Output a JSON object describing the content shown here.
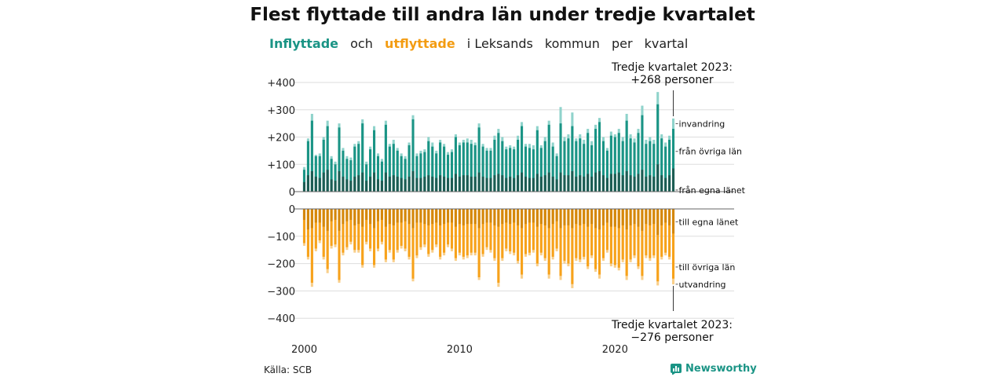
{
  "title": "Flest flyttade till andra län under tredje kvartalet",
  "subtitle": {
    "part1": "Inflyttade",
    "part2": "och",
    "part3": "utflyttade",
    "part4": "i Leksands",
    "part5": "kommun",
    "part6": "per",
    "part7": "kvartal"
  },
  "source": "Källa: SCB",
  "brand": "Newsworthy",
  "colors": {
    "in_egna": "#1c5c53",
    "in_ovriga": "#1a9485",
    "in_total": "#8fd3cb",
    "out_egna": "#d4870a",
    "out_ovriga": "#f7a21b",
    "out_total": "#f9cf8a"
  },
  "annotations": {
    "top_line1": "Tredje kvartalet 2023:",
    "top_line2": "+268 personer",
    "bottom_line1": "Tredje kvartalet 2023:",
    "bottom_line2": "−276 personer"
  },
  "chart_data": {
    "type": "bar",
    "title": "Flest flyttade till andra län under tredje kvartalet",
    "x_tick_labels": [
      "2000",
      "2010",
      "2020"
    ],
    "y_ticks_top": [
      "+400",
      "+300",
      "+200",
      "+100",
      "0"
    ],
    "y_ticks_bottom": [
      "0",
      "−100",
      "−200",
      "−300",
      "−400"
    ],
    "ylim": [
      -400,
      400
    ],
    "x_start": "2000 Q1",
    "x_end": "2023 Q3",
    "series": [
      {
        "name": "invandring",
        "values": [
          90,
          195,
          285,
          135,
          140,
          200,
          260,
          130,
          110,
          250,
          160,
          130,
          125,
          175,
          185,
          265,
          110,
          165,
          240,
          140,
          120,
          260,
          175,
          190,
          160,
          140,
          130,
          180,
          280,
          140,
          150,
          155,
          200,
          180,
          150,
          190,
          175,
          145,
          155,
          210,
          180,
          190,
          195,
          190,
          180,
          250,
          175,
          160,
          160,
          205,
          230,
          200,
          165,
          170,
          165,
          205,
          255,
          175,
          175,
          170,
          240,
          170,
          200,
          260,
          180,
          140,
          310,
          200,
          210,
          290,
          195,
          210,
          190,
          230,
          185,
          245,
          270,
          200,
          160,
          220,
          210,
          230,
          200,
          285,
          210,
          195,
          230,
          315,
          190,
          200,
          190,
          365,
          210,
          180,
          205,
          268
        ]
      },
      {
        "name": "från övriga län",
        "values": [
          80,
          185,
          260,
          130,
          130,
          190,
          240,
          120,
          100,
          235,
          150,
          120,
          115,
          165,
          175,
          250,
          100,
          155,
          225,
          130,
          110,
          245,
          165,
          175,
          150,
          130,
          120,
          170,
          265,
          130,
          140,
          145,
          185,
          165,
          140,
          180,
          165,
          135,
          145,
          200,
          170,
          180,
          180,
          175,
          170,
          235,
          165,
          150,
          150,
          190,
          215,
          185,
          155,
          160,
          155,
          190,
          240,
          165,
          160,
          155,
          225,
          160,
          185,
          245,
          165,
          130,
          250,
          185,
          195,
          240,
          185,
          195,
          175,
          215,
          170,
          230,
          255,
          185,
          150,
          205,
          200,
          215,
          185,
          260,
          195,
          180,
          215,
          280,
          175,
          185,
          175,
          320,
          195,
          165,
          190,
          230
        ]
      },
      {
        "name": "från egna länet",
        "values": [
          35,
          60,
          75,
          55,
          50,
          70,
          80,
          45,
          40,
          75,
          55,
          45,
          40,
          55,
          60,
          70,
          40,
          55,
          70,
          45,
          40,
          70,
          55,
          60,
          55,
          50,
          45,
          55,
          75,
          50,
          50,
          55,
          60,
          55,
          50,
          60,
          55,
          50,
          50,
          65,
          55,
          60,
          60,
          55,
          55,
          70,
          55,
          50,
          50,
          60,
          65,
          60,
          50,
          55,
          50,
          60,
          70,
          55,
          50,
          50,
          65,
          55,
          60,
          70,
          55,
          45,
          70,
          60,
          60,
          75,
          55,
          60,
          55,
          65,
          55,
          70,
          75,
          60,
          50,
          65,
          65,
          70,
          60,
          75,
          60,
          55,
          65,
          80,
          55,
          60,
          55,
          100,
          60,
          50,
          60,
          85
        ]
      },
      {
        "name": "till egna länet",
        "values": [
          -40,
          -75,
          -70,
          -50,
          -50,
          -65,
          -80,
          -45,
          -40,
          -80,
          -55,
          -45,
          -40,
          -60,
          -55,
          -65,
          -40,
          -55,
          -70,
          -45,
          -40,
          -65,
          -55,
          -60,
          -50,
          -50,
          -45,
          -55,
          -70,
          -50,
          -50,
          -55,
          -60,
          -55,
          -50,
          -60,
          -55,
          -50,
          -50,
          -65,
          -55,
          -60,
          -55,
          -55,
          -55,
          -70,
          -55,
          -50,
          -50,
          -60,
          -65,
          -55,
          -50,
          -55,
          -50,
          -60,
          -70,
          -55,
          -50,
          -50,
          -65,
          -55,
          -60,
          -70,
          -55,
          -45,
          -70,
          -60,
          -60,
          -70,
          -55,
          -60,
          -55,
          -65,
          -55,
          -70,
          -75,
          -60,
          -50,
          -65,
          -65,
          -70,
          -60,
          -75,
          -60,
          -55,
          -65,
          -80,
          -55,
          -60,
          -55,
          -95,
          -60,
          -50,
          -60,
          -90
        ]
      },
      {
        "name": "till övriga län",
        "values": [
          -125,
          -175,
          -270,
          -145,
          -115,
          -175,
          -220,
          -135,
          -130,
          -260,
          -160,
          -140,
          -120,
          -150,
          -150,
          -205,
          -120,
          -145,
          -205,
          -145,
          -120,
          -185,
          -150,
          -185,
          -150,
          -135,
          -145,
          -175,
          -255,
          -170,
          -140,
          -130,
          -165,
          -150,
          -130,
          -175,
          -160,
          -130,
          -145,
          -180,
          -160,
          -175,
          -170,
          -160,
          -160,
          -250,
          -165,
          -140,
          -150,
          -180,
          -270,
          -180,
          -145,
          -155,
          -160,
          -190,
          -240,
          -165,
          -160,
          -150,
          -200,
          -160,
          -180,
          -240,
          -175,
          -145,
          -245,
          -190,
          -200,
          -275,
          -180,
          -185,
          -175,
          -210,
          -170,
          -220,
          -240,
          -180,
          -150,
          -200,
          -205,
          -215,
          -185,
          -245,
          -185,
          -170,
          -210,
          -245,
          -170,
          -180,
          -170,
          -265,
          -175,
          -160,
          -175,
          -255
        ]
      },
      {
        "name": "utvandring",
        "values": [
          -135,
          -185,
          -285,
          -155,
          -125,
          -185,
          -235,
          -145,
          -140,
          -270,
          -170,
          -150,
          -130,
          -160,
          -160,
          -215,
          -130,
          -155,
          -215,
          -155,
          -130,
          -195,
          -160,
          -195,
          -160,
          -145,
          -155,
          -185,
          -265,
          -180,
          -150,
          -140,
          -175,
          -160,
          -140,
          -185,
          -170,
          -140,
          -155,
          -190,
          -170,
          -185,
          -180,
          -170,
          -170,
          -260,
          -175,
          -150,
          -160,
          -190,
          -285,
          -190,
          -155,
          -165,
          -170,
          -200,
          -255,
          -175,
          -170,
          -160,
          -210,
          -170,
          -190,
          -255,
          -185,
          -155,
          -260,
          -200,
          -210,
          -290,
          -190,
          -195,
          -185,
          -220,
          -180,
          -230,
          -255,
          -190,
          -160,
          -210,
          -215,
          -225,
          -195,
          -260,
          -195,
          -180,
          -220,
          -260,
          -180,
          -190,
          -180,
          -280,
          -185,
          -170,
          -185,
          -276
        ]
      }
    ],
    "series_labels": {
      "invandring": "invandring",
      "från övriga län": "från övriga län",
      "från egna länet": "från egna länet",
      "till egna länet": "till egna länet",
      "till övriga län": "till övriga län",
      "utvandring": "utvandring"
    }
  }
}
